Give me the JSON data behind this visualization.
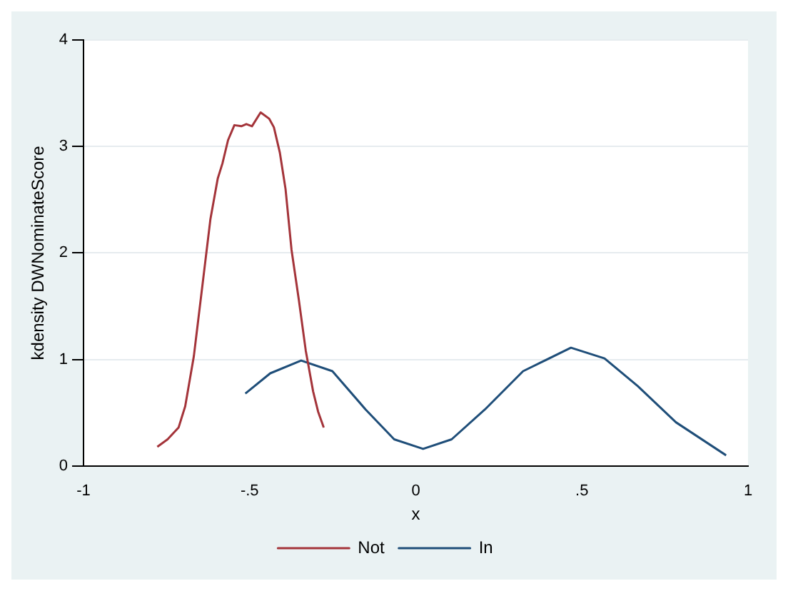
{
  "chart_data": {
    "type": "line",
    "xlabel": "x",
    "ylabel": "kdensity DWNominateScore",
    "xlim": [
      -1,
      1
    ],
    "ylim": [
      0,
      4
    ],
    "xticks": [
      -1,
      {
        "value": -0.5,
        "label": "-.5"
      },
      0,
      {
        "value": 0.5,
        "label": ".5"
      },
      1
    ],
    "yticks": [
      0,
      1,
      2,
      3,
      4
    ],
    "grid": "y",
    "legend": "bottom",
    "marker": "none",
    "line_style": "solid",
    "series": [
      {
        "name": "Not",
        "color": "#a4343a",
        "x": [
          -0.778,
          -0.747,
          -0.714,
          -0.694,
          -0.668,
          -0.642,
          -0.618,
          -0.596,
          -0.582,
          -0.565,
          -0.546,
          -0.525,
          -0.51,
          -0.493,
          -0.467,
          -0.441,
          -0.427,
          -0.409,
          -0.392,
          -0.374,
          -0.352,
          -0.331,
          -0.309,
          -0.294,
          -0.277
        ],
        "values": [
          0.18,
          0.25,
          0.36,
          0.56,
          1.03,
          1.7,
          2.32,
          2.7,
          2.84,
          3.06,
          3.2,
          3.19,
          3.21,
          3.19,
          3.32,
          3.26,
          3.18,
          2.94,
          2.6,
          2.03,
          1.56,
          1.08,
          0.7,
          0.51,
          0.36
        ]
      },
      {
        "name": "In",
        "color": "#1f4e79",
        "x": [
          -0.513,
          -0.438,
          -0.345,
          -0.251,
          -0.151,
          -0.065,
          0.022,
          0.108,
          0.208,
          0.323,
          0.467,
          0.568,
          0.668,
          0.783,
          0.934
        ],
        "values": [
          0.68,
          0.87,
          0.99,
          0.89,
          0.53,
          0.25,
          0.16,
          0.25,
          0.53,
          0.89,
          1.11,
          1.01,
          0.75,
          0.41,
          0.1
        ]
      }
    ]
  }
}
